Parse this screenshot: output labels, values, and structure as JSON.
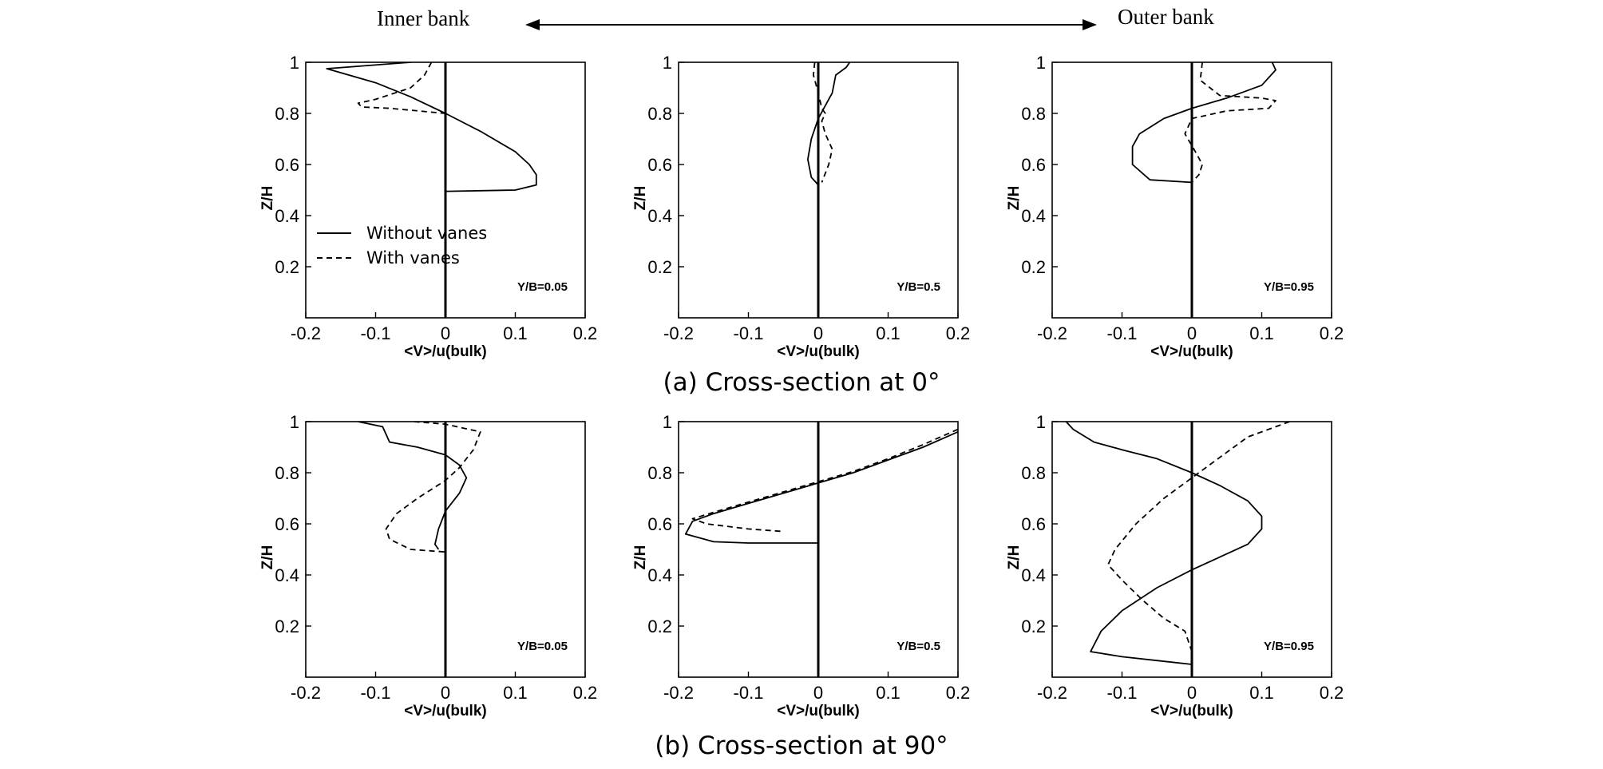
{
  "header": {
    "left_label": "Inner bank",
    "right_label": "Outer bank"
  },
  "captions": [
    "(a) Cross-section at 0°",
    "(b) Cross-section at 90°"
  ],
  "legend": [
    "Without vanes",
    "With vanes"
  ],
  "chart_data": [
    {
      "type": "line",
      "row": 0,
      "col": 0,
      "annotation": "Y/B=0.05",
      "xlabel": "<V>/u(bulk)",
      "ylabel": "Z/H",
      "xlim": [
        -0.2,
        0.2
      ],
      "ylim": [
        0,
        1
      ],
      "xticks": [
        "-0.2",
        "-0.1",
        "0",
        "0.1",
        "0.2"
      ],
      "yticks": [
        "0.2",
        "0.4",
        "0.6",
        "0.8",
        "1"
      ],
      "series": [
        {
          "name": "Without vanes",
          "style": "solid",
          "points": [
            [
              -0.05,
              1.0
            ],
            [
              -0.17,
              0.975
            ],
            [
              -0.1,
              0.92
            ],
            [
              -0.05,
              0.865
            ],
            [
              0.0,
              0.8
            ],
            [
              0.05,
              0.73
            ],
            [
              0.1,
              0.65
            ],
            [
              0.12,
              0.6
            ],
            [
              0.13,
              0.56
            ],
            [
              0.13,
              0.52
            ],
            [
              0.1,
              0.5
            ],
            [
              0.0,
              0.495
            ]
          ]
        },
        {
          "name": "With vanes",
          "style": "dashed",
          "points": [
            [
              -0.02,
              1.0
            ],
            [
              -0.03,
              0.95
            ],
            [
              -0.05,
              0.9
            ],
            [
              -0.1,
              0.855
            ],
            [
              -0.125,
              0.84
            ],
            [
              -0.12,
              0.825
            ],
            [
              -0.08,
              0.82
            ],
            [
              0.0,
              0.8
            ]
          ]
        }
      ]
    },
    {
      "type": "line",
      "row": 0,
      "col": 1,
      "annotation": "Y/B=0.5",
      "xlabel": "<V>/u(bulk)",
      "ylabel": "Z/H",
      "xlim": [
        -0.2,
        0.2
      ],
      "ylim": [
        0,
        1
      ],
      "xticks": [
        "-0.2",
        "-0.1",
        "0",
        "0.1",
        "0.2"
      ],
      "yticks": [
        "0.2",
        "0.4",
        "0.6",
        "0.8",
        "1"
      ],
      "series": [
        {
          "name": "Without vanes",
          "style": "solid",
          "points": [
            [
              0.045,
              1.0
            ],
            [
              0.04,
              0.98
            ],
            [
              0.025,
              0.95
            ],
            [
              0.02,
              0.88
            ],
            [
              0.0,
              0.78
            ],
            [
              -0.01,
              0.7
            ],
            [
              -0.015,
              0.62
            ],
            [
              -0.01,
              0.55
            ],
            [
              0.0,
              0.52
            ]
          ]
        },
        {
          "name": "With vanes",
          "style": "dashed",
          "points": [
            [
              -0.005,
              1.0
            ],
            [
              -0.007,
              0.95
            ],
            [
              0.0,
              0.88
            ],
            [
              0.005,
              0.82
            ],
            [
              0.01,
              0.8
            ],
            [
              0.005,
              0.77
            ],
            [
              0.01,
              0.72
            ],
            [
              0.02,
              0.66
            ],
            [
              0.015,
              0.6
            ],
            [
              0.005,
              0.53
            ]
          ]
        }
      ]
    },
    {
      "type": "line",
      "row": 0,
      "col": 2,
      "annotation": "Y/B=0.95",
      "xlabel": "<V>/u(bulk)",
      "ylabel": "Z/H",
      "xlim": [
        -0.2,
        0.2
      ],
      "ylim": [
        0,
        1
      ],
      "xticks": [
        "-0.2",
        "-0.1",
        "0",
        "0.1",
        "0.2"
      ],
      "yticks": [
        "0.2",
        "0.4",
        "0.6",
        "0.8",
        "1"
      ],
      "series": [
        {
          "name": "Without vanes",
          "style": "solid",
          "points": [
            [
              0.115,
              1.0
            ],
            [
              0.12,
              0.97
            ],
            [
              0.1,
              0.91
            ],
            [
              0.05,
              0.86
            ],
            [
              0.0,
              0.82
            ],
            [
              -0.04,
              0.78
            ],
            [
              -0.075,
              0.72
            ],
            [
              -0.085,
              0.67
            ],
            [
              -0.085,
              0.6
            ],
            [
              -0.06,
              0.54
            ],
            [
              0.0,
              0.53
            ]
          ]
        },
        {
          "name": "With vanes",
          "style": "dashed",
          "points": [
            [
              0.015,
              1.0
            ],
            [
              0.012,
              0.93
            ],
            [
              0.04,
              0.87
            ],
            [
              0.1,
              0.86
            ],
            [
              0.12,
              0.85
            ],
            [
              0.11,
              0.82
            ],
            [
              0.05,
              0.81
            ],
            [
              0.0,
              0.78
            ],
            [
              -0.01,
              0.72
            ],
            [
              0.005,
              0.65
            ],
            [
              0.015,
              0.6
            ],
            [
              0.01,
              0.56
            ],
            [
              0.0,
              0.53
            ]
          ]
        }
      ]
    },
    {
      "type": "line",
      "row": 1,
      "col": 0,
      "annotation": "Y/B=0.05",
      "xlabel": "<V>/u(bulk)",
      "ylabel": "Z/H",
      "xlim": [
        -0.2,
        0.2
      ],
      "ylim": [
        0,
        1
      ],
      "xticks": [
        "-0.2",
        "-0.1",
        "0",
        "0.1",
        "0.2"
      ],
      "yticks": [
        "0.2",
        "0.4",
        "0.6",
        "0.8",
        "1"
      ],
      "series": [
        {
          "name": "Without vanes",
          "style": "solid",
          "points": [
            [
              -0.125,
              1.0
            ],
            [
              -0.09,
              0.98
            ],
            [
              -0.08,
              0.92
            ],
            [
              -0.04,
              0.9
            ],
            [
              0.0,
              0.87
            ],
            [
              0.02,
              0.83
            ],
            [
              0.03,
              0.78
            ],
            [
              0.02,
              0.72
            ],
            [
              0.0,
              0.65
            ],
            [
              -0.01,
              0.58
            ],
            [
              -0.015,
              0.52
            ],
            [
              -0.01,
              0.5
            ]
          ]
        },
        {
          "name": "With vanes",
          "style": "dashed",
          "points": [
            [
              -0.045,
              1.0
            ],
            [
              0.0,
              0.99
            ],
            [
              0.05,
              0.96
            ],
            [
              0.04,
              0.89
            ],
            [
              0.02,
              0.82
            ],
            [
              0.0,
              0.77
            ],
            [
              -0.04,
              0.7
            ],
            [
              -0.07,
              0.64
            ],
            [
              -0.085,
              0.58
            ],
            [
              -0.08,
              0.54
            ],
            [
              -0.05,
              0.5
            ],
            [
              0.0,
              0.49
            ]
          ]
        }
      ]
    },
    {
      "type": "line",
      "row": 1,
      "col": 1,
      "annotation": "Y/B=0.5",
      "xlabel": "<V>/u(bulk)",
      "ylabel": "Z/H",
      "xlim": [
        -0.2,
        0.2
      ],
      "ylim": [
        0,
        1
      ],
      "xticks": [
        "-0.2",
        "-0.1",
        "0",
        "0.1",
        "0.2"
      ],
      "yticks": [
        "0.2",
        "0.4",
        "0.6",
        "0.8",
        "1"
      ],
      "series": [
        {
          "name": "Without vanes",
          "style": "solid",
          "points": [
            [
              0.2,
              0.96
            ],
            [
              0.15,
              0.9
            ],
            [
              0.1,
              0.85
            ],
            [
              0.05,
              0.8
            ],
            [
              0.0,
              0.76
            ],
            [
              -0.05,
              0.72
            ],
            [
              -0.1,
              0.68
            ],
            [
              -0.15,
              0.64
            ],
            [
              -0.18,
              0.61
            ],
            [
              -0.19,
              0.56
            ],
            [
              -0.15,
              0.53
            ],
            [
              -0.1,
              0.525
            ],
            [
              0.0,
              0.525
            ]
          ]
        },
        {
          "name": "With vanes",
          "style": "dashed",
          "points": [
            [
              0.2,
              0.97
            ],
            [
              0.15,
              0.91
            ],
            [
              0.1,
              0.855
            ],
            [
              0.05,
              0.805
            ],
            [
              0.0,
              0.765
            ],
            [
              -0.05,
              0.725
            ],
            [
              -0.1,
              0.685
            ],
            [
              -0.15,
              0.645
            ],
            [
              -0.18,
              0.62
            ],
            [
              -0.16,
              0.6
            ],
            [
              -0.1,
              0.58
            ],
            [
              -0.05,
              0.57
            ]
          ]
        }
      ]
    },
    {
      "type": "line",
      "row": 1,
      "col": 2,
      "annotation": "Y/B=0.95",
      "xlabel": "<V>/u(bulk)",
      "ylabel": "Z/H",
      "xlim": [
        -0.2,
        0.2
      ],
      "ylim": [
        0,
        1
      ],
      "xticks": [
        "-0.2",
        "-0.1",
        "0",
        "0.1",
        "0.2"
      ],
      "yticks": [
        "0.2",
        "0.4",
        "0.6",
        "0.8",
        "1"
      ],
      "series": [
        {
          "name": "Without vanes",
          "style": "solid",
          "points": [
            [
              -0.18,
              1.0
            ],
            [
              -0.17,
              0.97
            ],
            [
              -0.14,
              0.92
            ],
            [
              -0.1,
              0.89
            ],
            [
              -0.05,
              0.855
            ],
            [
              0.0,
              0.8
            ],
            [
              0.04,
              0.75
            ],
            [
              0.08,
              0.69
            ],
            [
              0.1,
              0.63
            ],
            [
              0.1,
              0.58
            ],
            [
              0.08,
              0.52
            ],
            [
              0.04,
              0.47
            ],
            [
              0.0,
              0.42
            ],
            [
              -0.05,
              0.35
            ],
            [
              -0.1,
              0.26
            ],
            [
              -0.13,
              0.18
            ],
            [
              -0.145,
              0.1
            ],
            [
              -0.1,
              0.08
            ],
            [
              -0.05,
              0.065
            ],
            [
              0.0,
              0.05
            ]
          ]
        },
        {
          "name": "With vanes",
          "style": "dashed",
          "points": [
            [
              0.14,
              1.0
            ],
            [
              0.12,
              0.98
            ],
            [
              0.08,
              0.94
            ],
            [
              0.04,
              0.86
            ],
            [
              0.0,
              0.78
            ],
            [
              -0.04,
              0.7
            ],
            [
              -0.08,
              0.6
            ],
            [
              -0.11,
              0.5
            ],
            [
              -0.12,
              0.44
            ],
            [
              -0.1,
              0.38
            ],
            [
              -0.07,
              0.3
            ],
            [
              -0.04,
              0.23
            ],
            [
              -0.01,
              0.18
            ],
            [
              0.0,
              0.1
            ],
            [
              0.0,
              0.05
            ]
          ]
        }
      ]
    }
  ]
}
